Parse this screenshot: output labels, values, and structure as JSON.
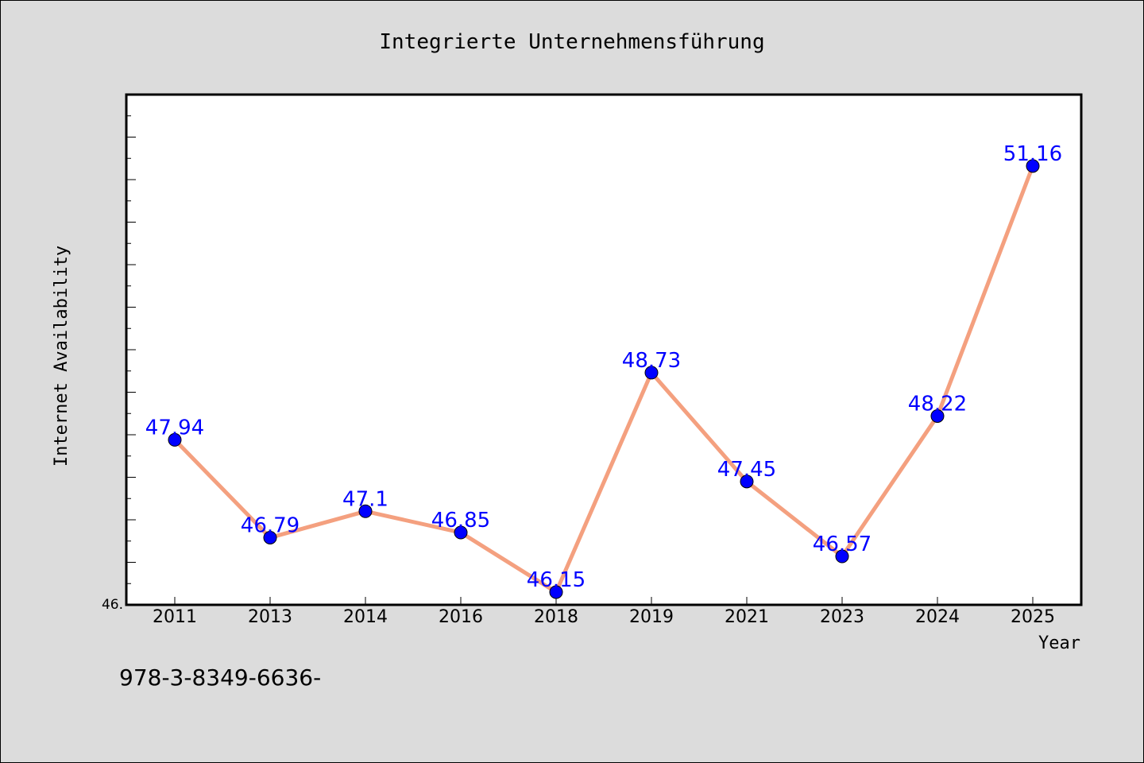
{
  "chart_data": {
    "type": "line",
    "title": "Integrierte Unternehmensführung",
    "xlabel": "Year",
    "ylabel": "Internet Availability",
    "categories": [
      "2011",
      "2013",
      "2014",
      "2016",
      "2018",
      "2019",
      "2021",
      "2023",
      "2024",
      "2025"
    ],
    "series": [
      {
        "values": [
          47.94,
          46.79,
          47.1,
          46.85,
          46.15,
          48.73,
          47.45,
          46.57,
          48.22,
          51.16
        ]
      }
    ],
    "data_labels": [
      "47.94",
      "46.79",
      "47.1",
      "46.85",
      "46.15",
      "48.73",
      "47.45",
      "46.57",
      "48.22",
      "51.16"
    ],
    "y_tick_label": "46.",
    "ylim": [
      46.0,
      52.0
    ],
    "grid": false,
    "legend": "none",
    "colors": {
      "line": "#f4a07f",
      "marker": "#0000ff",
      "data_label": "#0000ff",
      "background": "#dcdcdc",
      "plot_background": "#ffffff"
    }
  },
  "footer": {
    "text": "978-3-8349-6636-"
  }
}
